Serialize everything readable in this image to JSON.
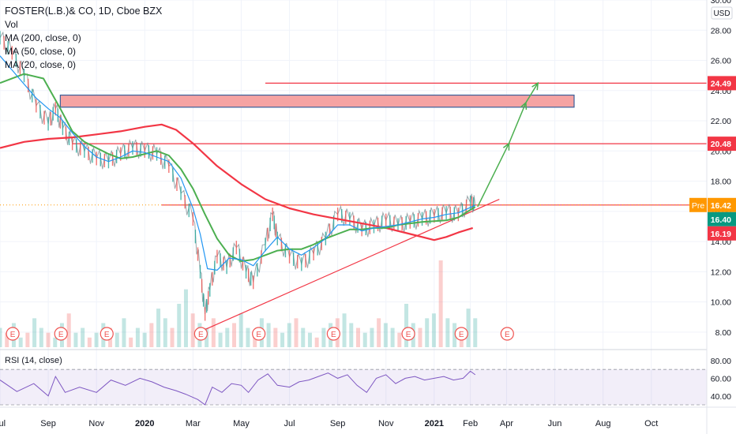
{
  "header": {
    "title": "FOSTER(L.B.)& CO, 1D, Cboe BZX",
    "indicators": [
      "Vol",
      "MA (200, close, 0)",
      "MA (50, close, 0)",
      "MA (20, close, 0)"
    ],
    "currency": "USD",
    "rsi_label": "RSI (14, close)"
  },
  "chart_data": {
    "type": "line",
    "title": "FOSTER(L.B.)& CO, 1D, Cboe BZX",
    "x_axis": {
      "ticks": [
        "Jul",
        "Sep",
        "Nov",
        "2020",
        "Mar",
        "May",
        "Jul",
        "Sep",
        "Nov",
        "2021",
        "Feb",
        "Apr",
        "Jun",
        "Aug",
        "Oct"
      ],
      "tick_months": [
        0,
        2,
        4,
        6,
        8,
        10,
        12,
        14,
        16,
        18,
        19.5,
        21,
        23,
        25,
        27
      ],
      "range_months": [
        0,
        29.3
      ]
    },
    "y_axis": {
      "ticks": [
        8,
        10,
        12,
        14,
        16,
        18,
        20,
        22,
        24,
        26,
        28,
        30
      ],
      "range": [
        7,
        30
      ],
      "unit": "USD"
    },
    "rsi_axis": {
      "ticks": [
        40,
        60,
        80
      ],
      "range": [
        30,
        88
      ],
      "band": [
        30,
        70
      ]
    },
    "price_badges": [
      {
        "label": "24.49",
        "value": 24.49,
        "color": "#f23645"
      },
      {
        "label": "20.48",
        "value": 20.48,
        "color": "#f23645"
      },
      {
        "label": "16.42",
        "value": 16.42,
        "color": "#ff9800",
        "prefix": "Pre"
      },
      {
        "label": "16.40",
        "value": 16.4,
        "color": "#089981"
      },
      {
        "label": "16.19",
        "value": 16.19,
        "color": "#f23645"
      }
    ],
    "price_path": [
      [
        0,
        27.5
      ],
      [
        0.5,
        26.5
      ],
      [
        1,
        25
      ],
      [
        1.5,
        23
      ],
      [
        2,
        21.8
      ],
      [
        2.3,
        22.8
      ],
      [
        2.6,
        21.5
      ],
      [
        3,
        20.5
      ],
      [
        3.5,
        20
      ],
      [
        4,
        19.5
      ],
      [
        4.5,
        19.3
      ],
      [
        5,
        19.8
      ],
      [
        5.5,
        20.2
      ],
      [
        6,
        20
      ],
      [
        6.5,
        19.8
      ],
      [
        7,
        19
      ],
      [
        7.5,
        17.2
      ],
      [
        8,
        15.5
      ],
      [
        8.3,
        12
      ],
      [
        8.5,
        9.2
      ],
      [
        8.7,
        10.8
      ],
      [
        9,
        13
      ],
      [
        9.4,
        12.3
      ],
      [
        9.8,
        13.6
      ],
      [
        10.2,
        12
      ],
      [
        10.5,
        11.3
      ],
      [
        11,
        13.8
      ],
      [
        11.3,
        15.8
      ],
      [
        11.5,
        14.2
      ],
      [
        12,
        13
      ],
      [
        12.5,
        12.5
      ],
      [
        13,
        13.2
      ],
      [
        13.5,
        14.2
      ],
      [
        14,
        15.8
      ],
      [
        14.5,
        15.5
      ],
      [
        15,
        14.8
      ],
      [
        15.5,
        15
      ],
      [
        16,
        15.4
      ],
      [
        16.5,
        15.1
      ],
      [
        17,
        15.3
      ],
      [
        17.5,
        15.5
      ],
      [
        18,
        15.7
      ],
      [
        18.5,
        15.9
      ],
      [
        19,
        15.8
      ],
      [
        19.5,
        16.6
      ],
      [
        19.7,
        16.42
      ]
    ],
    "series": [
      {
        "name": "MA (200, close, 0)",
        "color": "#f23645",
        "width": 2.2,
        "points": [
          [
            0,
            20.2
          ],
          [
            1,
            20.6
          ],
          [
            2,
            20.8
          ],
          [
            3,
            20.9
          ],
          [
            4,
            21.1
          ],
          [
            5,
            21.3
          ],
          [
            6,
            21.6
          ],
          [
            6.7,
            21.75
          ],
          [
            7.3,
            21.4
          ],
          [
            8,
            20.5
          ],
          [
            9,
            19
          ],
          [
            10,
            17.8
          ],
          [
            11,
            16.8
          ],
          [
            12,
            16.2
          ],
          [
            13,
            15.8
          ],
          [
            14,
            15.5
          ],
          [
            15,
            15.2
          ],
          [
            16,
            14.9
          ],
          [
            17,
            14.5
          ],
          [
            18,
            14.1
          ],
          [
            18.5,
            14.3
          ],
          [
            19,
            14.6
          ],
          [
            19.6,
            14.9
          ]
        ]
      },
      {
        "name": "MA (50, close, 0)",
        "color": "#4caf50",
        "width": 2,
        "points": [
          [
            0,
            24.5
          ],
          [
            1,
            25.1
          ],
          [
            1.8,
            24.8
          ],
          [
            2.5,
            22.8
          ],
          [
            3,
            21.3
          ],
          [
            3.5,
            20.6
          ],
          [
            4,
            20.2
          ],
          [
            4.5,
            19.8
          ],
          [
            5,
            19.5
          ],
          [
            5.5,
            19.6
          ],
          [
            6,
            19.8
          ],
          [
            6.5,
            20
          ],
          [
            7,
            19.7
          ],
          [
            7.5,
            18.8
          ],
          [
            8,
            17.5
          ],
          [
            8.5,
            15.8
          ],
          [
            9,
            14.2
          ],
          [
            9.5,
            13.1
          ],
          [
            10,
            12.7
          ],
          [
            10.5,
            12.8
          ],
          [
            11,
            13.1
          ],
          [
            11.5,
            13.4
          ],
          [
            12,
            13.5
          ],
          [
            12.5,
            13.5
          ],
          [
            13,
            13.8
          ],
          [
            13.5,
            14.2
          ],
          [
            14,
            14.5
          ],
          [
            14.5,
            14.8
          ],
          [
            15,
            14.8
          ],
          [
            15.5,
            14.9
          ],
          [
            16,
            14.9
          ],
          [
            16.5,
            15.1
          ],
          [
            17,
            15.2
          ],
          [
            17.5,
            15.3
          ],
          [
            18,
            15.35
          ],
          [
            18.5,
            15.4
          ],
          [
            19,
            15.6
          ],
          [
            19.7,
            16.3
          ]
        ]
      },
      {
        "name": "MA (20, close, 0)",
        "color": "#2196f3",
        "width": 1.2,
        "points": [
          [
            0,
            26.3
          ],
          [
            0.8,
            24.8
          ],
          [
            1.5,
            23.5
          ],
          [
            2,
            22.8
          ],
          [
            2.5,
            22.2
          ],
          [
            3,
            21.2
          ],
          [
            3.5,
            20.3
          ],
          [
            4,
            19.6
          ],
          [
            4.5,
            19.3
          ],
          [
            5,
            19.6
          ],
          [
            5.5,
            20
          ],
          [
            6,
            19.9
          ],
          [
            6.5,
            19.6
          ],
          [
            7,
            19.3
          ],
          [
            7.5,
            18.2
          ],
          [
            8,
            16.2
          ],
          [
            8.3,
            14.5
          ],
          [
            8.6,
            12.2
          ],
          [
            9,
            12.1
          ],
          [
            9.5,
            12.9
          ],
          [
            10,
            12.8
          ],
          [
            10.5,
            12.4
          ],
          [
            11,
            13.4
          ],
          [
            11.5,
            14.3
          ],
          [
            12,
            13.5
          ],
          [
            12.5,
            13.1
          ],
          [
            13,
            13.6
          ],
          [
            13.5,
            14.2
          ],
          [
            14,
            15.1
          ],
          [
            14.5,
            15.1
          ],
          [
            15,
            14.7
          ],
          [
            15.5,
            14.9
          ],
          [
            16,
            15
          ],
          [
            16.5,
            15.1
          ],
          [
            17,
            15.3
          ],
          [
            17.5,
            15.5
          ],
          [
            18,
            15.6
          ],
          [
            18.5,
            15.8
          ],
          [
            19,
            15.9
          ],
          [
            19.7,
            16.4
          ]
        ]
      }
    ],
    "rsi_path": [
      [
        0,
        58
      ],
      [
        0.7,
        45
      ],
      [
        1.4,
        54
      ],
      [
        2,
        40
      ],
      [
        2.3,
        62
      ],
      [
        2.7,
        44
      ],
      [
        3.3,
        50
      ],
      [
        4,
        44
      ],
      [
        4.6,
        58
      ],
      [
        5.2,
        52
      ],
      [
        5.8,
        60
      ],
      [
        6.3,
        56
      ],
      [
        6.8,
        50
      ],
      [
        7.3,
        46
      ],
      [
        7.7,
        42
      ],
      [
        8.2,
        36
      ],
      [
        8.5,
        30
      ],
      [
        8.8,
        50
      ],
      [
        9.2,
        44
      ],
      [
        9.6,
        54
      ],
      [
        10,
        52
      ],
      [
        10.3,
        44
      ],
      [
        10.7,
        58
      ],
      [
        11.1,
        65
      ],
      [
        11.5,
        52
      ],
      [
        12,
        50
      ],
      [
        12.4,
        56
      ],
      [
        12.8,
        58
      ],
      [
        13.2,
        62
      ],
      [
        13.6,
        66
      ],
      [
        14,
        60
      ],
      [
        14.4,
        64
      ],
      [
        14.8,
        52
      ],
      [
        15.2,
        44
      ],
      [
        15.6,
        60
      ],
      [
        16,
        64
      ],
      [
        16.4,
        54
      ],
      [
        16.8,
        60
      ],
      [
        17.2,
        62
      ],
      [
        17.6,
        58
      ],
      [
        18,
        60
      ],
      [
        18.4,
        62
      ],
      [
        18.8,
        58
      ],
      [
        19.2,
        60
      ],
      [
        19.5,
        68
      ],
      [
        19.7,
        64
      ]
    ],
    "annotations": {
      "support_line": {
        "from": [
          8.4,
          8.1
        ],
        "to": [
          20.7,
          16.8
        ],
        "color": "#f23645"
      },
      "hline_top": {
        "from": [
          11,
          24.49
        ],
        "to": [
          29.3,
          24.49
        ],
        "color": "#f23645"
      },
      "hline_mid": {
        "from": [
          3,
          20.48
        ],
        "to": [
          29.3,
          20.48
        ],
        "color": "#f23645"
      },
      "hline_low": {
        "from": [
          6.7,
          16.42
        ],
        "to": [
          29.3,
          16.42
        ],
        "color": "#f23645"
      },
      "zone": {
        "x": [
          2.5,
          23.8
        ],
        "y": [
          22.9,
          23.7
        ],
        "fill": "#f5a3a3",
        "stroke": "#3a5f9a"
      },
      "projection_arrow": {
        "points": [
          [
            19.8,
            16.3
          ],
          [
            21.1,
            20.5
          ],
          [
            21.8,
            23.2
          ],
          [
            22.3,
            24.5
          ]
        ],
        "color": "#4caf50"
      },
      "earnings_months": [
        0.2,
        2.2,
        4.1,
        8.0,
        10.4,
        13.5,
        16.6,
        18.8,
        20.7
      ]
    },
    "volume": [
      4,
      3,
      5,
      2,
      3,
      6,
      4,
      3,
      2,
      5,
      7,
      3,
      4,
      2,
      3,
      5,
      4,
      3,
      6,
      2,
      4,
      3,
      5,
      8,
      6,
      4,
      9,
      12,
      7,
      5,
      4,
      6,
      3,
      4,
      5,
      7,
      4,
      3,
      6,
      5,
      4,
      3,
      5,
      6,
      4,
      3,
      2,
      4,
      5,
      6,
      7,
      5,
      4,
      3,
      4,
      6,
      5,
      4,
      3,
      9,
      5,
      4,
      6,
      7,
      18,
      6,
      5,
      4,
      8,
      6
    ],
    "legend": "top-left"
  }
}
